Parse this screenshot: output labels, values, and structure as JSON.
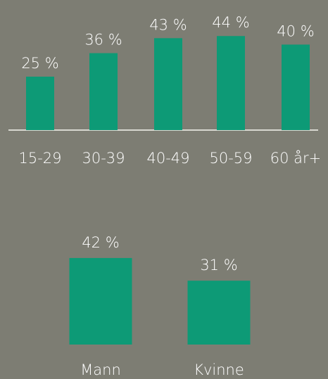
{
  "colors": {
    "background": "#7d7d73",
    "bar": "#0d9a76",
    "baseline": "#d8d8d0",
    "text": "#ffffff"
  },
  "chart_data": [
    {
      "type": "bar",
      "categories": [
        "15-29",
        "30-39",
        "40-49",
        "50-59",
        "60 år+"
      ],
      "values": [
        25,
        36,
        43,
        44,
        40
      ],
      "value_labels": [
        "25 %",
        "36 %",
        "43 %",
        "44 %",
        "40 %"
      ],
      "title": "",
      "xlabel": "",
      "ylabel": "",
      "ylim": [
        0,
        50
      ],
      "grid": false,
      "baseline": true
    },
    {
      "type": "bar",
      "categories": [
        "Mann",
        "Kvinne"
      ],
      "values": [
        42,
        31
      ],
      "value_labels": [
        "42 %",
        "31 %"
      ],
      "title": "",
      "xlabel": "",
      "ylabel": "",
      "ylim": [
        0,
        50
      ],
      "grid": false,
      "baseline": false
    }
  ]
}
